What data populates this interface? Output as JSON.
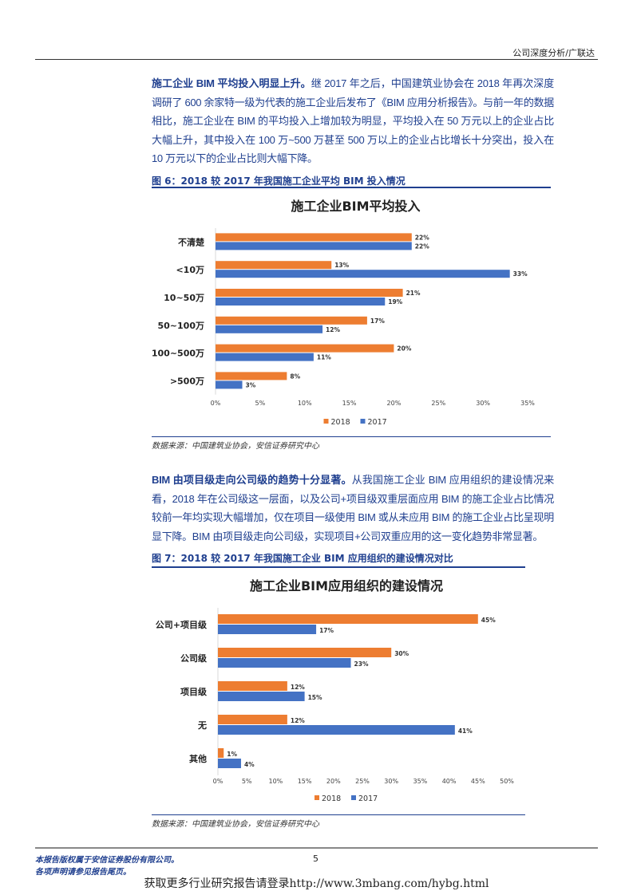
{
  "header": {
    "text": "公司深度分析/广联达"
  },
  "para1": {
    "bold": "施工企业 BIM 平均投入明显上升。",
    "text": "继 2017 年之后，中国建筑业协会在 2018 年再次深度调研了 600 余家特一级为代表的施工企业后发布了《BIM 应用分析报告》。与前一年的数据相比，施工企业在 BIM 的平均投入上增加较为明显，平均投入在 50 万元以上的企业占比大幅上升，其中投入在 100 万~500 万甚至 500 万以上的企业占比增长十分突出，投入在 10 万元以下的企业占比则大幅下降。"
  },
  "fig6": {
    "caption": "图 6：2018 较 2017 年我国施工企业平均 BIM 投入情况",
    "source": "数据来源：中国建筑业协会，安信证券研究中心"
  },
  "para2": {
    "bold": "BIM 由项目级走向公司级的趋势十分显著。",
    "text": "从我国施工企业 BIM 应用组织的建设情况来看，2018 年在公司级这一层面，以及公司+项目级双重层面应用 BIM 的施工企业占比情况较前一年均实现大幅增加，仅在项目一级使用 BIM 或从未应用 BIM 的施工企业占比呈现明显下降。BIM 由项目级走向公司级，实现项目+公司双重应用的这一变化趋势非常显著。"
  },
  "fig7": {
    "caption": "图 7：2018 较 2017 年我国施工企业 BIM 应用组织的建设情况对比",
    "source": "数据来源：中国建筑业协会，安信证券研究中心"
  },
  "chart_data": [
    {
      "type": "bar",
      "orientation": "horizontal",
      "title": "施工企业BIM平均投入",
      "categories": [
        "不清楚",
        "<10万",
        "10~50万",
        "50~100万",
        "100~500万",
        ">500万"
      ],
      "series": [
        {
          "name": "2018",
          "color": "#ed7d31",
          "values": [
            22,
            13,
            21,
            17,
            20,
            8
          ]
        },
        {
          "name": "2017",
          "color": "#4472c4",
          "values": [
            22,
            33,
            19,
            12,
            11,
            3
          ]
        }
      ],
      "xlim": [
        0,
        35
      ],
      "xticks": [
        "0%",
        "5%",
        "10%",
        "15%",
        "20%",
        "25%",
        "30%",
        "35%"
      ],
      "legend": "bottom"
    },
    {
      "type": "bar",
      "orientation": "horizontal",
      "title": "施工企业BIM应用组织的建设情况",
      "categories": [
        "公司+项目级",
        "公司级",
        "项目级",
        "无",
        "其他"
      ],
      "series": [
        {
          "name": "2018",
          "color": "#ed7d31",
          "values": [
            45,
            30,
            12,
            12,
            1
          ]
        },
        {
          "name": "2017",
          "color": "#4472c4",
          "values": [
            17,
            23,
            15,
            41,
            4
          ]
        }
      ],
      "xlim": [
        0,
        50
      ],
      "xticks": [
        "0%",
        "5%",
        "10%",
        "15%",
        "20%",
        "25%",
        "30%",
        "35%",
        "40%",
        "45%",
        "50%"
      ],
      "legend": "bottom"
    }
  ],
  "footer": {
    "line1": "本报告版权属于安信证券股份有限公司。",
    "line2": "各项声明请参见报告尾页。",
    "page": "5",
    "promo": "获取更多行业研究报告请登录http://www.3mbang.com/hybg.html"
  }
}
